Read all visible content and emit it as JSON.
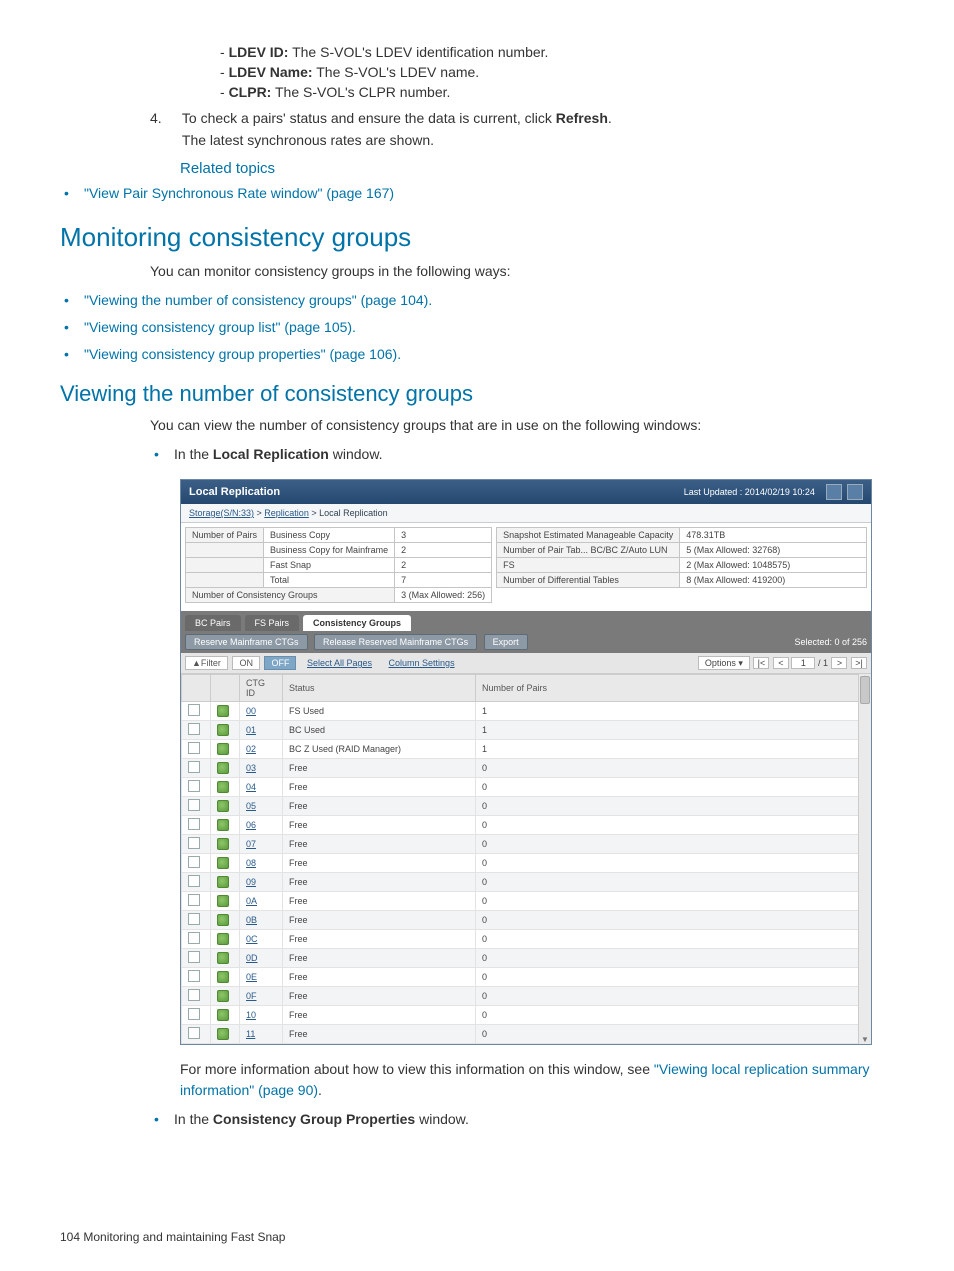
{
  "doc": {
    "sub_items": [
      {
        "term": "LDEV ID:",
        "desc": "The S-VOL's LDEV identification number."
      },
      {
        "term": "LDEV Name:",
        "desc": "The S-VOL's LDEV name."
      },
      {
        "term": "CLPR:",
        "desc": "The S-VOL's CLPR number."
      }
    ],
    "step4_num": "4.",
    "step4_line1_a": "To check a pairs' status and ensure the data is current, click ",
    "step4_line1_b": "Refresh",
    "step4_line1_c": ".",
    "step4_line2": "The latest synchronous rates are shown.",
    "related_heading": "Related topics",
    "related_link": "\"View Pair Synchronous Rate window\" (page 167)",
    "h1": "Monitoring consistency groups",
    "h1_text": "You can monitor consistency groups in the following ways:",
    "h1_links": [
      "\"Viewing the number of consistency groups\" (page 104).",
      "\"Viewing consistency group list\" (page 105).",
      "\"Viewing consistency group properties\" (page 106)."
    ],
    "h2": "Viewing the number of consistency groups",
    "h2_text": "You can view the number of consistency groups that are in use on the following windows:",
    "bullet_local_a": "In the ",
    "bullet_local_b": "Local Replication",
    "bullet_local_c": " window.",
    "after_shot_a": "For more information about how to view this information on this window, see ",
    "after_shot_link": "\"Viewing local replication summary information\" (page 90)",
    "after_shot_b": ".",
    "bullet_cgp_a": "In the ",
    "bullet_cgp_b": "Consistency Group Properties",
    "bullet_cgp_c": " window.",
    "footer": "104    Monitoring and maintaining Fast Snap"
  },
  "shot": {
    "title": "Local Replication",
    "updated": "Last Updated : 2014/02/19 10:24",
    "crumb_a": "Storage(S/N:33)",
    "crumb_b": "Replication",
    "crumb_c": "Local Replication",
    "summary_left": [
      {
        "lab": "Number of Pairs",
        "sub": "Business Copy",
        "val": "3"
      },
      {
        "lab": "",
        "sub": "Business Copy for Mainframe",
        "val": "2"
      },
      {
        "lab": "",
        "sub": "Fast Snap",
        "val": "2"
      },
      {
        "lab": "",
        "sub": "Total",
        "val": "7"
      },
      {
        "lab": "Number of Consistency Groups",
        "sub": "",
        "val": "3 (Max Allowed: 256)"
      }
    ],
    "summary_right": [
      {
        "lab": "Snapshot Estimated Manageable Capacity",
        "val": "478.31TB"
      },
      {
        "lab": "Number of Pair Tab...   BC/BC Z/Auto LUN",
        "val": "5 (Max Allowed: 32768)"
      },
      {
        "lab": "FS",
        "val": "2 (Max Allowed: 1048575)"
      },
      {
        "lab": "Number of Differential Tables",
        "val": "8 (Max Allowed: 419200)"
      }
    ],
    "tabs": [
      "BC Pairs",
      "FS Pairs",
      "Consistency Groups"
    ],
    "active_tab": 2,
    "toolbar": {
      "btn1": "Reserve Mainframe CTGs",
      "btn2": "Release Reserved Mainframe CTGs",
      "btn3": "Export",
      "selected": "Selected: 0   of 256"
    },
    "sub": {
      "filter": "▲Filter",
      "on": "ON",
      "off": "OFF",
      "sel_all": "Select All Pages",
      "col_set": "Column Settings",
      "options": "Options ▾",
      "page_cur": "1",
      "page_total": "/ 1"
    },
    "cols": [
      "",
      "",
      "CTG ID",
      "Status",
      "Number of Pairs"
    ],
    "rows": [
      {
        "ctg": "00",
        "status": "FS Used",
        "num": "1"
      },
      {
        "ctg": "01",
        "status": "BC Used",
        "num": "1"
      },
      {
        "ctg": "02",
        "status": "BC Z Used (RAID Manager)",
        "num": "1"
      },
      {
        "ctg": "03",
        "status": "Free",
        "num": "0"
      },
      {
        "ctg": "04",
        "status": "Free",
        "num": "0"
      },
      {
        "ctg": "05",
        "status": "Free",
        "num": "0"
      },
      {
        "ctg": "06",
        "status": "Free",
        "num": "0"
      },
      {
        "ctg": "07",
        "status": "Free",
        "num": "0"
      },
      {
        "ctg": "08",
        "status": "Free",
        "num": "0"
      },
      {
        "ctg": "09",
        "status": "Free",
        "num": "0"
      },
      {
        "ctg": "0A",
        "status": "Free",
        "num": "0"
      },
      {
        "ctg": "0B",
        "status": "Free",
        "num": "0"
      },
      {
        "ctg": "0C",
        "status": "Free",
        "num": "0"
      },
      {
        "ctg": "0D",
        "status": "Free",
        "num": "0"
      },
      {
        "ctg": "0E",
        "status": "Free",
        "num": "0"
      },
      {
        "ctg": "0F",
        "status": "Free",
        "num": "0"
      },
      {
        "ctg": "10",
        "status": "Free",
        "num": "0"
      },
      {
        "ctg": "11",
        "status": "Free",
        "num": "0"
      }
    ]
  }
}
